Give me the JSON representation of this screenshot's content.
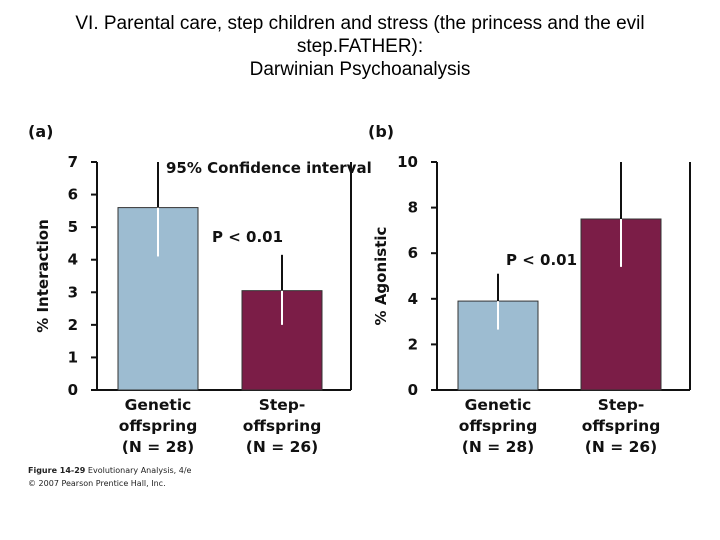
{
  "title_lines": [
    "VI. Parental care, step children and stress (the princess and the evil",
    "step.FATHER):",
    "Darwinian Psychoanalysis"
  ],
  "colors": {
    "genetic": "#9dbcd1",
    "step": "#7b1d47",
    "error_inside": "#ffffff",
    "error_outside": "#111111"
  },
  "figure_caption": {
    "line1_bold": "Figure 14-29",
    "line1_rest": " Evolutionary Analysis, 4/e",
    "line2": "© 2007 Pearson Prentice Hall, Inc."
  },
  "chart_data": [
    {
      "type": "bar",
      "panel": "(a)",
      "categories": [
        [
          "Genetic",
          "offspring",
          "(N = 28)"
        ],
        [
          "Step-",
          "offspring",
          "(N = 26)"
        ]
      ],
      "values": [
        5.6,
        3.05
      ],
      "error_low": [
        4.1,
        2.0
      ],
      "error_high": [
        7.0,
        4.15
      ],
      "ylabel": "% Interaction",
      "ylim": [
        0,
        7
      ],
      "yticks": [
        0,
        1,
        2,
        3,
        4,
        5,
        6,
        7
      ],
      "annotations": [
        "95% Confidence interval",
        "P < 0.01"
      ]
    },
    {
      "type": "bar",
      "panel": "(b)",
      "categories": [
        [
          "Genetic",
          "offspring",
          "(N = 28)"
        ],
        [
          "Step-",
          "offspring",
          "(N = 26)"
        ]
      ],
      "values": [
        3.9,
        7.5
      ],
      "error_low": [
        2.65,
        5.4
      ],
      "error_high": [
        5.1,
        10.0
      ],
      "ylabel": "% Agonistic",
      "ylim": [
        0,
        10
      ],
      "yticks": [
        0,
        2,
        4,
        6,
        8,
        10
      ],
      "annotations": [
        "P < 0.01"
      ]
    }
  ]
}
